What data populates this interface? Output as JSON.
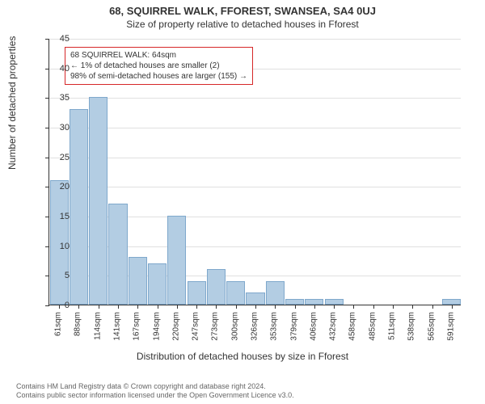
{
  "chart": {
    "type": "bar",
    "title_main": "68, SQUIRREL WALK, FFOREST, SWANSEA, SA4 0UJ",
    "title_sub": "Size of property relative to detached houses in Fforest",
    "title_main_fontsize": 13,
    "title_sub_fontsize": 12,
    "ylabel": "Number of detached properties",
    "xlabel": "Distribution of detached houses by size in Fforest",
    "label_fontsize": 12,
    "ylim": [
      0,
      45
    ],
    "ytick_step": 5,
    "yticks": [
      0,
      5,
      10,
      15,
      20,
      25,
      30,
      35,
      40,
      45
    ],
    "xticks": [
      "61sqm",
      "88sqm",
      "114sqm",
      "141sqm",
      "167sqm",
      "194sqm",
      "220sqm",
      "247sqm",
      "273sqm",
      "300sqm",
      "326sqm",
      "353sqm",
      "379sqm",
      "406sqm",
      "432sqm",
      "458sqm",
      "485sqm",
      "511sqm",
      "538sqm",
      "565sqm",
      "591sqm"
    ],
    "values": [
      21,
      33,
      35,
      17,
      8,
      7,
      15,
      4,
      6,
      4,
      2,
      4,
      1,
      1,
      1,
      0,
      0,
      0,
      0,
      0,
      1
    ],
    "bar_fill": "#b3cde3",
    "bar_border": "#7fa8cc",
    "background_color": "#ffffff",
    "grid_color": "#e0e0e0",
    "axis_color": "#333333",
    "tick_fontsize": 11,
    "xtick_fontsize": 10,
    "bar_width_ratio": 0.95
  },
  "annotation": {
    "line1": "68 SQUIRREL WALK: 64sqm",
    "line2": "← 1% of detached houses are smaller (2)",
    "line3": "98% of semi-detached houses are larger (155) →",
    "border_color": "#d62728",
    "fontsize": 10
  },
  "footer": {
    "line1": "Contains HM Land Registry data © Crown copyright and database right 2024.",
    "line2": "Contains public sector information licensed under the Open Government Licence v3.0.",
    "fontsize": 9,
    "color": "#666666"
  }
}
